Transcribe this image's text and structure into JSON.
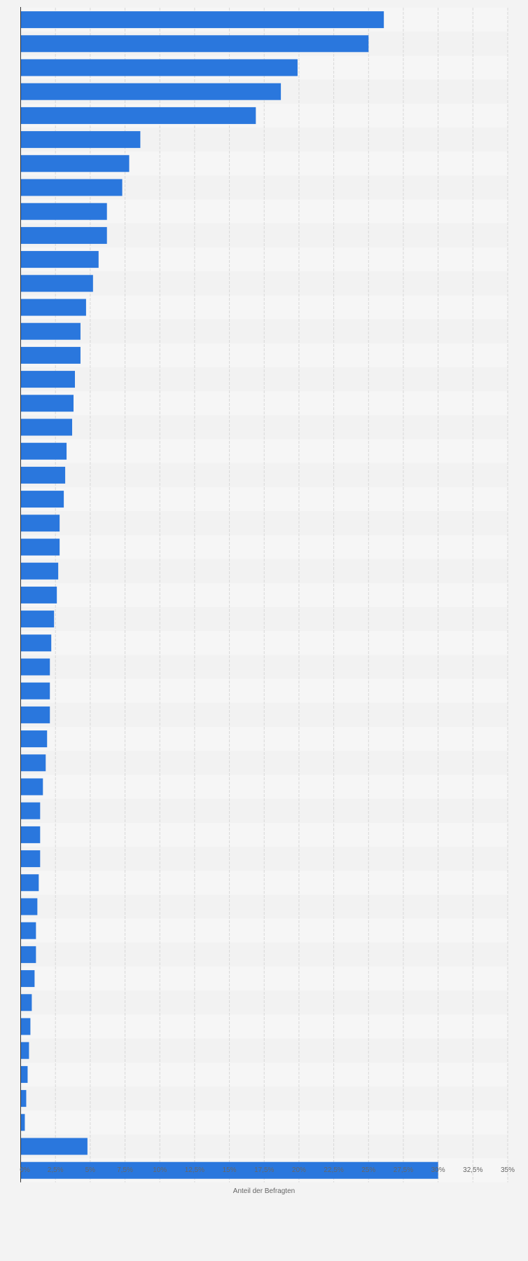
{
  "chart_data": {
    "type": "bar",
    "orientation": "horizontal",
    "xlabel": "Anteil der Befragten",
    "ylabel": "",
    "xlim": [
      0,
      35
    ],
    "grid": true,
    "bar_color": "#2a77dd",
    "background_color": "#f3f3f3",
    "band_colors": [
      "#f6f6f6",
      "#f2f2f2"
    ],
    "tick_labels": [
      "0%",
      "2,5%",
      "5%",
      "7,5%",
      "10%",
      "12,5%",
      "15%",
      "17,5%",
      "20%",
      "22,5%",
      "25%",
      "27,5%",
      "30%",
      "32,5%",
      "35%"
    ],
    "tick_values": [
      0,
      2.5,
      5,
      7.5,
      10,
      12.5,
      15,
      17.5,
      20,
      22.5,
      25,
      27.5,
      30,
      32.5,
      35
    ],
    "values": [
      26.1,
      25.0,
      19.9,
      18.7,
      16.9,
      8.6,
      7.8,
      7.3,
      6.2,
      6.2,
      5.6,
      5.2,
      4.7,
      4.3,
      4.3,
      3.9,
      3.8,
      3.7,
      3.3,
      3.2,
      3.1,
      2.8,
      2.8,
      2.7,
      2.6,
      2.4,
      2.2,
      2.1,
      2.1,
      2.1,
      1.9,
      1.8,
      1.6,
      1.4,
      1.4,
      1.4,
      1.3,
      1.2,
      1.1,
      1.1,
      1.0,
      0.8,
      0.7,
      0.6,
      0.5,
      0.4,
      0.3,
      4.8,
      30.0
    ]
  }
}
